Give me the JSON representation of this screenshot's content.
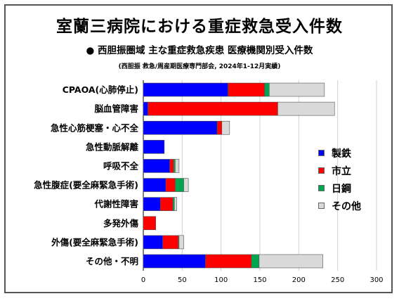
{
  "title": "室蘭三病院における重症救急受入件数",
  "subtitle": "● 西胆振圏域 主な重症救急疾患 医療機関別受入件数",
  "source": "(西胆振 救急/周産期医療専門部会, 2024年1-12月実績)",
  "chart_data": {
    "type": "bar",
    "orientation": "horizontal",
    "stacked": true,
    "categories": [
      "CPAOA(心肺停止)",
      "脳血管障害",
      "急性心筋梗塞・心不全",
      "急性動脈解離",
      "呼吸不全",
      "急性腹症(要全麻緊急手術)",
      "代謝性障害",
      "多発外傷",
      "外傷(要全麻緊急手術)",
      "その他・不明"
    ],
    "series": [
      {
        "name": "製鉄",
        "color": "#0000ff",
        "values": [
          109,
          6,
          95,
          27,
          34,
          29,
          22,
          0,
          25,
          80
        ]
      },
      {
        "name": "市立",
        "color": "#ff0000",
        "values": [
          47,
          167,
          6,
          0,
          5,
          12,
          16,
          16,
          20,
          59
        ]
      },
      {
        "name": "日鋼",
        "color": "#00a550",
        "values": [
          6,
          0,
          0,
          0,
          2,
          11,
          2,
          0,
          1,
          10
        ]
      },
      {
        "name": "その他",
        "color": "#d9d9d9",
        "values": [
          71,
          73,
          10,
          0,
          5,
          6,
          3,
          0,
          6,
          82
        ]
      }
    ],
    "xticks": [
      0,
      50,
      100,
      150,
      200,
      250,
      300
    ],
    "xlim": [
      0,
      300
    ],
    "grid": "vertical",
    "legend_position": "right"
  }
}
